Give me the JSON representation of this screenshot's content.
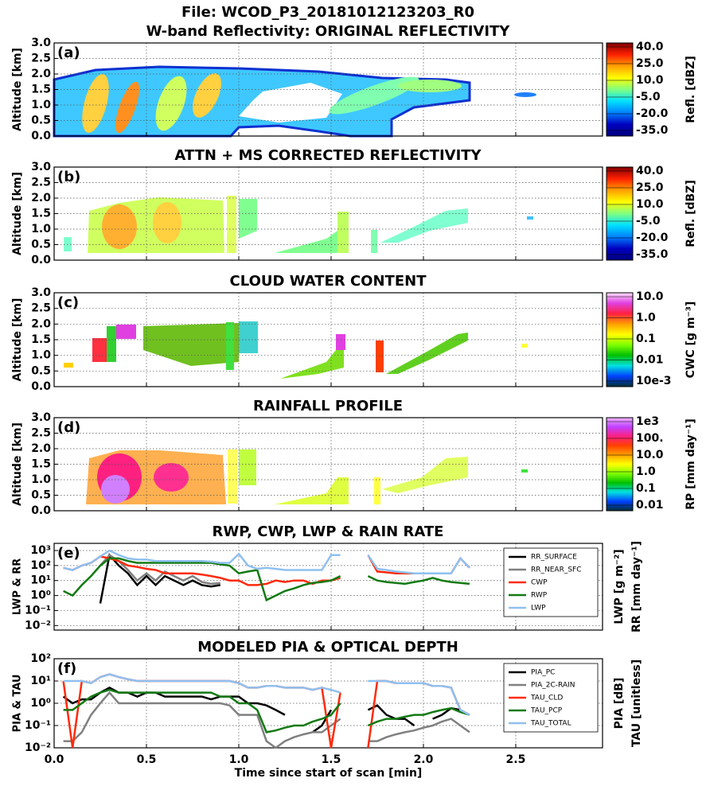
{
  "chart_data": [
    {
      "type": "image",
      "suptitle": "File: WCOD_P3_20181012123203_R0",
      "title": "W-band Reflectivity: ORIGINAL REFLECTIVITY",
      "panel_label": "(a)",
      "ylabel": "Altitude [km]",
      "ylim": [
        0,
        3
      ],
      "yticks": [
        {
          "value": 0,
          "label": "0.0"
        },
        {
          "value": 0.5,
          "label": "0.5"
        },
        {
          "value": 1,
          "label": "1.0"
        },
        {
          "value": 1.5,
          "label": "1.5"
        },
        {
          "value": 2,
          "label": "2.0"
        },
        {
          "value": 2.5,
          "label": "2.5"
        },
        {
          "value": 3,
          "label": "3.0"
        }
      ],
      "colorbar": {
        "label": "Refl. [dBZ]",
        "tick_labels": [
          "40.0",
          "25.0",
          "10.0",
          "-5.0",
          "-20.0",
          "-35.0"
        ],
        "colors": [
          "#7f0000",
          "#ff2000",
          "#ffa000",
          "#ffff00",
          "#80ff80",
          "#00e0ff",
          "#0080ff",
          "#0000c0",
          "#00007f"
        ]
      }
    },
    {
      "type": "image",
      "title": "ATTN + MS CORRECTED REFLECTIVITY",
      "panel_label": "(b)",
      "ylabel": "Altitude [km]",
      "ylim": [
        0,
        3
      ],
      "yticks": [
        {
          "value": 0,
          "label": "0.0"
        },
        {
          "value": 0.5,
          "label": "0.5"
        },
        {
          "value": 1,
          "label": "1.0"
        },
        {
          "value": 1.5,
          "label": "1.5"
        },
        {
          "value": 2,
          "label": "2.0"
        },
        {
          "value": 2.5,
          "label": "2.5"
        },
        {
          "value": 3,
          "label": "3.0"
        }
      ],
      "colorbar": {
        "label": "Refl. [dBZ]",
        "tick_labels": [
          "40.0",
          "25.0",
          "10.0",
          "-5.0",
          "-20.0",
          "-35.0"
        ],
        "colors": [
          "#7f0000",
          "#ff2000",
          "#ffa000",
          "#ffff00",
          "#80ff80",
          "#00e0ff",
          "#0080ff",
          "#0000c0",
          "#00007f"
        ]
      }
    },
    {
      "type": "image",
      "title": "CLOUD WATER CONTENT",
      "panel_label": "(c)",
      "ylabel": "Altitude [km]",
      "ylim": [
        0,
        3
      ],
      "yticks": [
        {
          "value": 0,
          "label": "0.0"
        },
        {
          "value": 0.5,
          "label": "0.5"
        },
        {
          "value": 1,
          "label": "1.0"
        },
        {
          "value": 1.5,
          "label": "1.5"
        },
        {
          "value": 2,
          "label": "2.0"
        },
        {
          "value": 2.5,
          "label": "2.5"
        },
        {
          "value": 3,
          "label": "3.0"
        }
      ],
      "colorbar": {
        "label": "CWC [g m⁻³]",
        "tick_labels": [
          "10.0",
          "1.0",
          "0.1",
          "0.01",
          "10e-3"
        ],
        "colors": [
          "#ffe0ff",
          "#e040e0",
          "#ff2040",
          "#ffa000",
          "#ffff00",
          "#80ff00",
          "#00c000",
          "#00e0e0",
          "#0040ff",
          "#003030"
        ]
      }
    },
    {
      "type": "image",
      "title": "RAINFALL PROFILE",
      "panel_label": "(d)",
      "ylabel": "Altitude [km]",
      "ylim": [
        0,
        3
      ],
      "yticks": [
        {
          "value": 0,
          "label": "0.0"
        },
        {
          "value": 0.5,
          "label": "0.5"
        },
        {
          "value": 1,
          "label": "1.0"
        },
        {
          "value": 1.5,
          "label": "1.5"
        },
        {
          "value": 2,
          "label": "2.0"
        },
        {
          "value": 2.5,
          "label": "2.5"
        },
        {
          "value": 3,
          "label": "3.0"
        }
      ],
      "colorbar": {
        "label": "RP [mm day⁻¹]",
        "tick_labels": [
          "1e3",
          "100.",
          "10.0",
          "1.0",
          "0.1",
          "0.01"
        ],
        "colors": [
          "#f0b0ff",
          "#c040ff",
          "#ff2080",
          "#ff4000",
          "#ffa000",
          "#ffff00",
          "#80ff00",
          "#00c000",
          "#00e0e0",
          "#0040ff",
          "#003030"
        ]
      }
    },
    {
      "type": "line",
      "title": "RWP, CWP, LWP & RAIN RATE",
      "panel_label": "(e)",
      "ylabel": "LWP & RR",
      "right_labels": [
        "LWP [g m⁻²]",
        "RR [mm day⁻¹]"
      ],
      "log_y": true,
      "ylim": [
        0.005,
        3000
      ],
      "legend": "upper right",
      "yticks": [
        {
          "value": 0.01,
          "label": "10⁻²"
        },
        {
          "value": 0.1,
          "label": "10⁻¹"
        },
        {
          "value": 1,
          "label": "10⁰"
        },
        {
          "value": 10,
          "label": "10¹"
        },
        {
          "value": 100,
          "label": "10²"
        },
        {
          "value": 1000,
          "label": "10³"
        }
      ],
      "x": [
        0.05,
        0.1,
        0.15,
        0.2,
        0.25,
        0.3,
        0.35,
        0.4,
        0.45,
        0.5,
        0.55,
        0.6,
        0.65,
        0.7,
        0.75,
        0.8,
        0.85,
        0.9,
        0.95,
        1.0,
        1.05,
        1.1,
        1.15,
        1.2,
        1.25,
        1.3,
        1.35,
        1.4,
        1.45,
        1.5,
        1.55,
        1.6,
        1.65,
        1.7,
        1.75,
        1.8,
        1.85,
        1.9,
        1.95,
        2.0,
        2.05,
        2.1,
        2.15,
        2.2,
        2.25
      ],
      "series": [
        {
          "name": "RR_SURFACE",
          "color": "#000000",
          "values": [
            null,
            null,
            null,
            null,
            0.3,
            500,
            100,
            30,
            5,
            20,
            5,
            20,
            10,
            5,
            10,
            5,
            4,
            5,
            null,
            null,
            null,
            null,
            null,
            null,
            null,
            null,
            null,
            null,
            null,
            null,
            null,
            null,
            null,
            null,
            null,
            null,
            null,
            null,
            null,
            null,
            null,
            null,
            null,
            null,
            null
          ]
        },
        {
          "name": "RR_NEAR_SFC",
          "color": "#808080",
          "values": [
            null,
            null,
            null,
            null,
            100,
            500,
            200,
            50,
            10,
            30,
            10,
            40,
            20,
            10,
            20,
            8,
            6,
            7,
            null,
            null,
            null,
            null,
            null,
            null,
            null,
            null,
            null,
            null,
            null,
            null,
            null,
            null,
            null,
            null,
            null,
            null,
            null,
            null,
            null,
            null,
            null,
            null,
            null,
            null,
            null
          ]
        },
        {
          "name": "CWP",
          "color": "#ff2a0a",
          "values": [
            70,
            50,
            100,
            150,
            400,
            300,
            200,
            100,
            80,
            60,
            50,
            30,
            30,
            30,
            30,
            25,
            20,
            15,
            10,
            10,
            5,
            5,
            6,
            10,
            8,
            10,
            10,
            6,
            10,
            10,
            15,
            null,
            null,
            500,
            40,
            35,
            30,
            30,
            30,
            30,
            30,
            30,
            30,
            300,
            70
          ]
        },
        {
          "name": "RWP",
          "color": "#127a12",
          "values": [
            2,
            1,
            5,
            20,
            100,
            300,
            300,
            200,
            150,
            150,
            150,
            150,
            150,
            150,
            150,
            150,
            150,
            120,
            100,
            30,
            40,
            50,
            0.5,
            1,
            2,
            3,
            5,
            7,
            8,
            10,
            20,
            null,
            null,
            20,
            10,
            8,
            7,
            6,
            8,
            10,
            15,
            10,
            8,
            7,
            6
          ]
        },
        {
          "name": "LWP",
          "color": "#8fc0f0",
          "values": [
            70,
            50,
            100,
            150,
            400,
            1000,
            500,
            300,
            250,
            250,
            200,
            200,
            200,
            200,
            200,
            200,
            180,
            150,
            150,
            600,
            100,
            60,
            70,
            60,
            50,
            50,
            50,
            50,
            50,
            500,
            500,
            null,
            null,
            500,
            60,
            50,
            40,
            35,
            30,
            30,
            30,
            30,
            30,
            300,
            70
          ]
        }
      ]
    },
    {
      "type": "line",
      "title": "MODELED PIA & OPTICAL DEPTH",
      "panel_label": "(f)",
      "ylabel": "PIA & TAU",
      "right_labels": [
        "PIA [dB]",
        "TAU [unitless]"
      ],
      "xlabel": "Time since start of scan [min]",
      "xlim": [
        0,
        2.97
      ],
      "xticks": [
        {
          "value": 0,
          "label": "0.0"
        },
        {
          "value": 0.5,
          "label": "0.5"
        },
        {
          "value": 1,
          "label": "1.0"
        },
        {
          "value": 1.5,
          "label": "1.5"
        },
        {
          "value": 2,
          "label": "2.0"
        },
        {
          "value": 2.5,
          "label": "2.5"
        }
      ],
      "log_y": true,
      "ylim": [
        0.01,
        100
      ],
      "legend": "upper right",
      "yticks": [
        {
          "value": 0.01,
          "label": "10⁻²"
        },
        {
          "value": 0.1,
          "label": "10⁻¹"
        },
        {
          "value": 1,
          "label": "10⁰"
        },
        {
          "value": 10,
          "label": "10¹"
        },
        {
          "value": 100,
          "label": "10²"
        }
      ],
      "x": [
        0.05,
        0.1,
        0.15,
        0.2,
        0.25,
        0.3,
        0.35,
        0.4,
        0.45,
        0.5,
        0.55,
        0.6,
        0.65,
        0.7,
        0.75,
        0.8,
        0.85,
        0.9,
        0.95,
        1.0,
        1.05,
        1.1,
        1.15,
        1.2,
        1.25,
        1.3,
        1.35,
        1.4,
        1.45,
        1.5,
        1.55,
        1.6,
        1.65,
        1.7,
        1.75,
        1.8,
        1.85,
        1.9,
        1.95,
        2.0,
        2.05,
        2.1,
        2.15,
        2.2,
        2.25
      ],
      "series": [
        {
          "name": "PIA_PC",
          "color": "#000000",
          "values": [
            2,
            1,
            1.5,
            1.5,
            3,
            5,
            3,
            3,
            2,
            3,
            3,
            2,
            2,
            2,
            2,
            2,
            1.5,
            2,
            2,
            2,
            1,
            1,
            0.8,
            0.5,
            0.3,
            null,
            null,
            0.05,
            0.1,
            0.5,
            null,
            null,
            null,
            0.5,
            0.8,
            0.3,
            0.2,
            0.2,
            0.1,
            null,
            0.2,
            0.3,
            0.6,
            0.5,
            null
          ]
        },
        {
          "name": "PIA_2C-RAIN",
          "color": "#808080",
          "values": [
            0.02,
            0.02,
            0.05,
            0.3,
            1,
            3,
            1,
            1,
            1,
            1,
            1,
            1,
            1,
            1,
            1,
            1,
            1,
            1,
            0.8,
            0.3,
            0.3,
            0.3,
            0.02,
            0.01,
            0.02,
            0.03,
            0.04,
            0.05,
            0.05,
            0.1,
            0.2,
            null,
            null,
            0.02,
            0.02,
            0.03,
            0.04,
            0.05,
            0.06,
            0.08,
            0.1,
            0.15,
            0.2,
            0.1,
            0.05
          ]
        },
        {
          "name": "TAU_CLD",
          "color": "#ff2a0a",
          "values": [
            10,
            0.01,
            10,
            8,
            15,
            20,
            15,
            12,
            10,
            10,
            10,
            10,
            10,
            10,
            10,
            10,
            10,
            10,
            10,
            8,
            5,
            5,
            6,
            6,
            5,
            5,
            5,
            4,
            5,
            0.01,
            3,
            null,
            null,
            0.01,
            10,
            10,
            8,
            8,
            8,
            8,
            6,
            6,
            5,
            0.5,
            0.3
          ]
        },
        {
          "name": "TAU_PCP",
          "color": "#127a12",
          "values": [
            0.5,
            0.5,
            1,
            2,
            3,
            4,
            3,
            3,
            3,
            3,
            3,
            3,
            3,
            3,
            3,
            3,
            3,
            2,
            2,
            1,
            1,
            0.5,
            0.05,
            0.06,
            0.08,
            0.1,
            0.1,
            0.15,
            0.2,
            0.3,
            1,
            null,
            null,
            0.1,
            0.15,
            0.2,
            0.2,
            0.25,
            0.3,
            0.3,
            0.4,
            0.5,
            0.6,
            0.4,
            0.3
          ]
        },
        {
          "name": "TAU_TOTAL",
          "color": "#8fc0f0",
          "values": [
            10,
            10,
            10,
            8,
            15,
            20,
            15,
            12,
            10,
            10,
            10,
            10,
            10,
            10,
            10,
            10,
            10,
            10,
            10,
            8,
            5,
            5,
            6,
            6,
            5,
            5,
            5,
            4,
            5,
            4,
            3,
            null,
            null,
            10,
            10,
            10,
            8,
            8,
            8,
            8,
            6,
            6,
            5,
            0.5,
            0.3
          ]
        }
      ]
    }
  ]
}
